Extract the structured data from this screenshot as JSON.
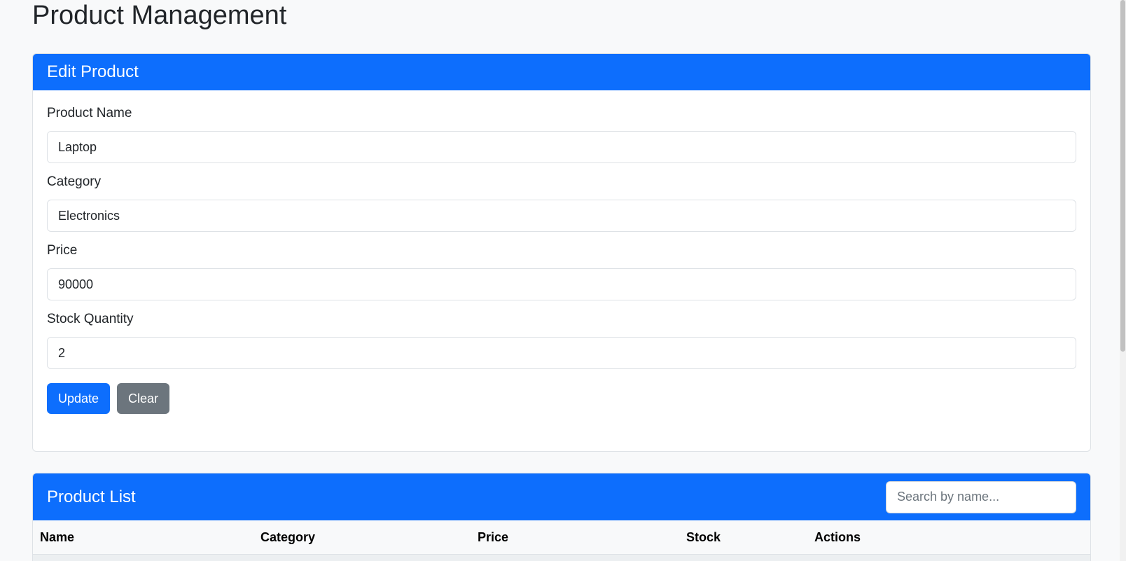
{
  "page": {
    "title": "Product Management"
  },
  "edit_card": {
    "title": "Edit Product",
    "fields": {
      "name": {
        "label": "Product Name",
        "value": "Laptop"
      },
      "category": {
        "label": "Category",
        "value": "Electronics"
      },
      "price": {
        "label": "Price",
        "value": "90000"
      },
      "stock": {
        "label": "Stock Quantity",
        "value": "2"
      }
    },
    "buttons": {
      "update": "Update",
      "clear": "Clear"
    }
  },
  "list_card": {
    "title": "Product List",
    "search": {
      "placeholder": "Search by name...",
      "value": ""
    },
    "columns": [
      "Name",
      "Category",
      "Price",
      "Stock",
      "Actions"
    ]
  },
  "colors": {
    "primary": "#0d6efd",
    "secondary": "#6c757d",
    "background": "#f8f9fa"
  }
}
